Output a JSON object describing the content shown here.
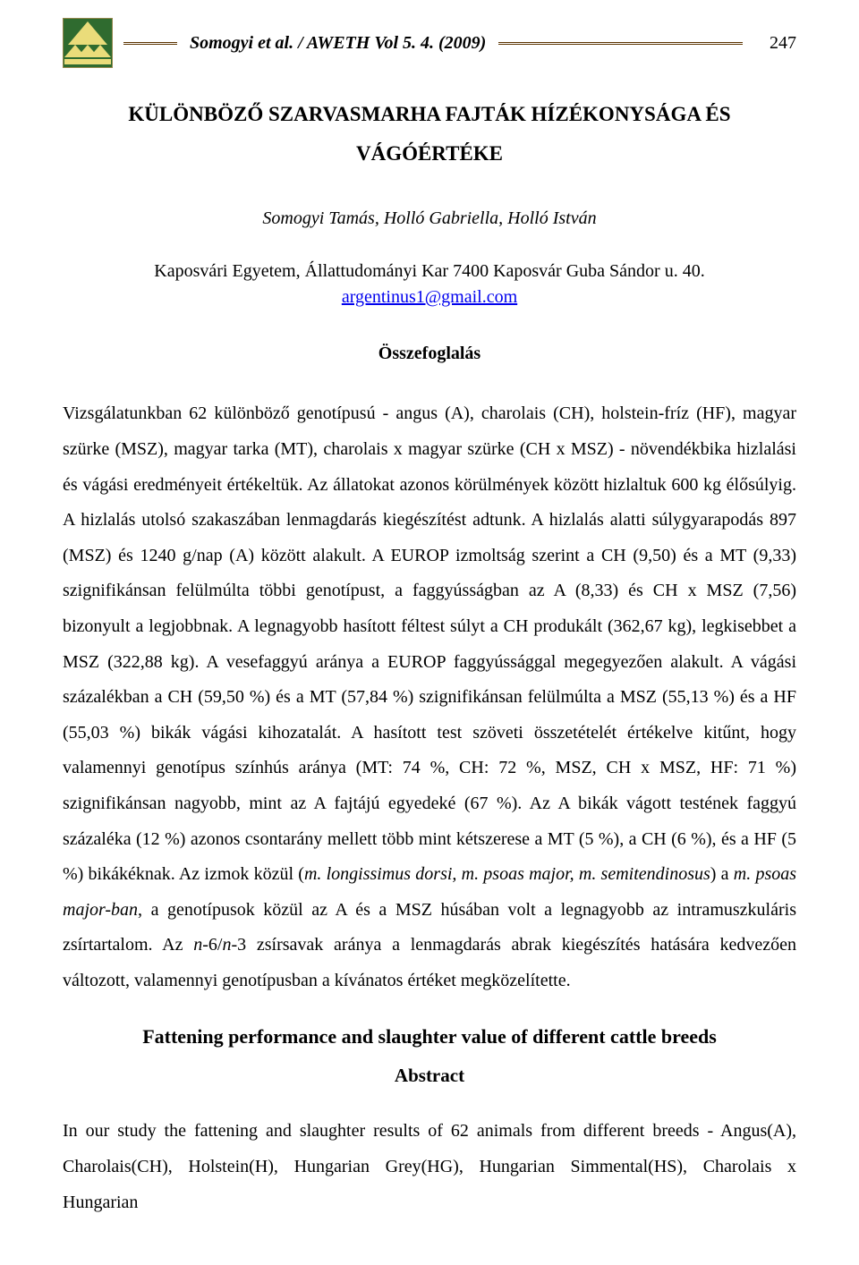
{
  "header": {
    "running_title": "Somogyi et al. / AWETH Vol 5. 4. (2009)",
    "page_number": "247"
  },
  "article": {
    "title_line1": "KÜLÖNBÖZŐ SZARVASMARHA FAJTÁK HÍZÉKONYSÁGA ÉS",
    "title_line2": "VÁGÓÉRTÉKE",
    "authors": "Somogyi Tamás, Holló Gabriella, Holló István",
    "affiliation": "Kaposvári Egyetem, Állattudományi Kar 7400 Kaposvár Guba Sándor u. 40.",
    "email": "argentinus1@gmail.com"
  },
  "summary": {
    "heading": "Összefoglalás",
    "body_html": "Vizsgálatunkban 62 különböző genotípusú - angus (A), charolais (CH), holstein-fríz (HF), magyar szürke (MSZ), magyar tarka (MT), charolais x magyar szürke (CH x MSZ) - növendékbika hizlalási és vágási eredményeit értékeltük. Az állatokat azonos körülmények között hizlaltuk 600 kg élősúlyig. A hizlalás utolsó szakaszában lenmagdarás kiegészítést adtunk. A hizlalás alatti súlygyarapodás 897 (MSZ) és 1240 g/nap (A) között alakult. A EUROP izmoltság szerint a CH (9,50) és a MT (9,33) szignifikánsan felülmúlta  többi genotípust, a faggyússágban az A (8,33) és  CH x MSZ (7,56) bizonyult a legjobbnak. A legnagyobb hasított féltest súlyt a CH produkált (362,67 kg), legkisebbet a MSZ (322,88 kg). A vesefaggyú aránya a EUROP faggyússággal megegyezően alakult. A vágási százalékban a CH (59,50 %) és a MT (57,84 %) szignifikánsan felülmúlta a MSZ (55,13 %) és a HF (55,03 %) bikák vágási kihozatalát. A hasított test szöveti összetételét értékelve kitűnt, hogy valamennyi genotípus színhús aránya (MT: 74 %, CH: 72 %, MSZ, CH x MSZ, HF: 71 %) szignifikánsan nagyobb, mint az A fajtájú egyedeké (67 %). Az A bikák vágott testének faggyú százaléka (12 %) azonos csontarány mellett több mint kétszerese a MT (5 %), a CH (6 %), és a HF (5 %) bikákéknak. Az izmok közül (<span class=\"ital\">m. longissimus dorsi, m. psoas major, m. semitendinosus</span>) a <span class=\"ital\">m. psoas major-ban</span>, a genotípusok közül az A és a MSZ húsában volt a legnagyobb az intramuszkuláris zsírtartalom. Az <span class=\"ital\">n</span>-6/<span class=\"ital\">n</span>-3 zsírsavak aránya a lenmagdarás abrak kiegészítés hatására kedvezően változott, valamennyi genotípusban a kívánatos értéket megközelítette."
  },
  "english": {
    "title": "Fattening performance and slaughter value of different cattle breeds",
    "heading": "Abstract",
    "body": "In our study the fattening and slaughter results of 62 animals from different breeds - Angus(A), Charolais(CH), Holstein(H), Hungarian Grey(HG), Hungarian Simmental(HS), Charolais x Hungarian"
  },
  "logo": {
    "bg_color": "#2f6b2f",
    "triangle_color": "#eadc7a",
    "border_color": "#93864a"
  }
}
